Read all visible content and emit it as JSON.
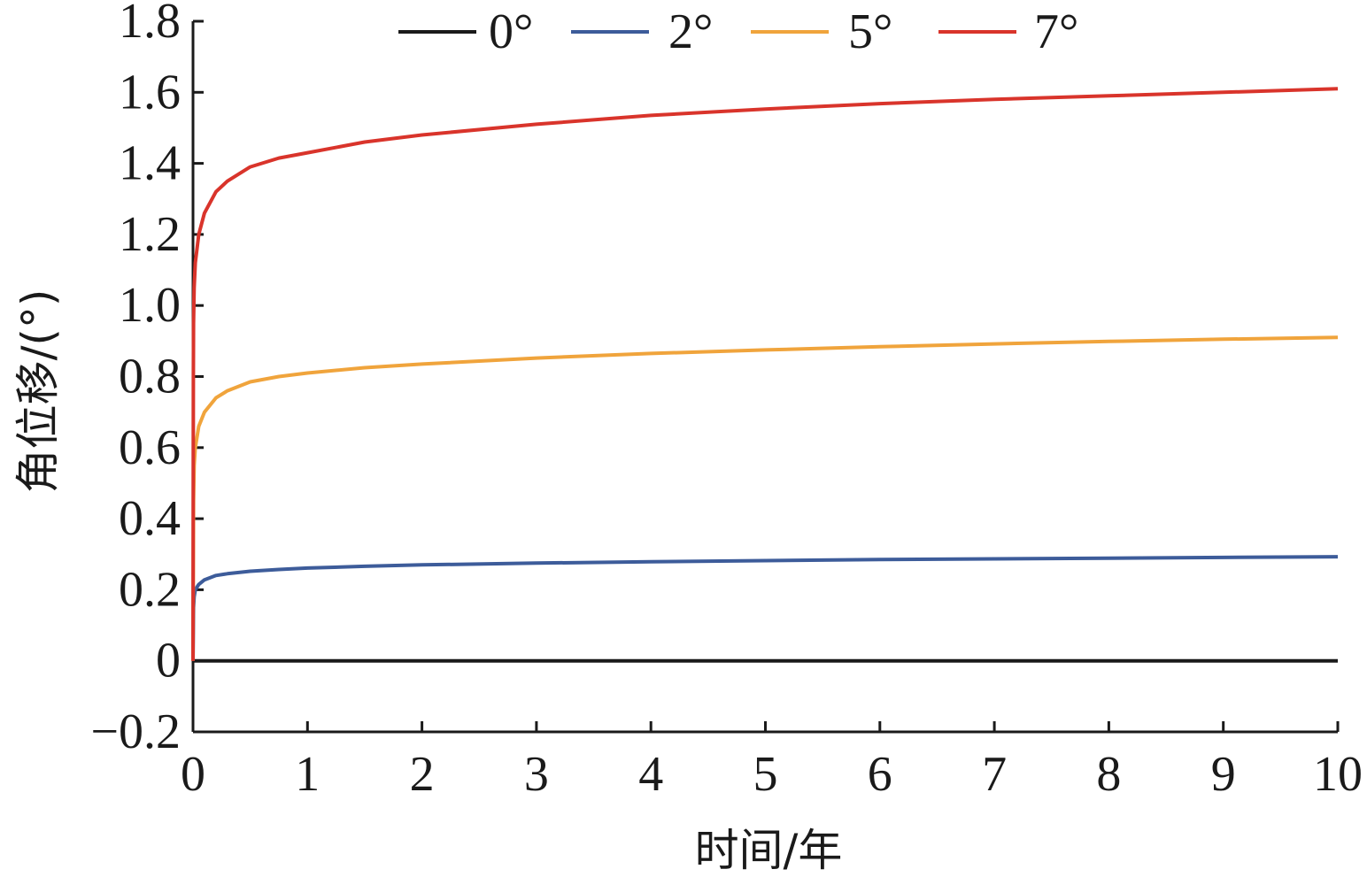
{
  "chart_data": {
    "type": "line",
    "title": "",
    "xlabel": "时间/年",
    "ylabel": "角位移/(°)",
    "xlim": [
      0,
      10
    ],
    "ylim": [
      -0.2,
      1.8
    ],
    "x_ticks": [
      0,
      1,
      2,
      3,
      4,
      5,
      6,
      7,
      8,
      9,
      10
    ],
    "x_tick_labels": [
      "0",
      "1",
      "2",
      "3",
      "4",
      "5",
      "6",
      "7",
      "8",
      "9",
      "10"
    ],
    "y_ticks": [
      -0.2,
      0,
      0.2,
      0.4,
      0.6,
      0.8,
      1.0,
      1.2,
      1.4,
      1.6,
      1.8
    ],
    "y_tick_labels": [
      "−0.2",
      "0",
      "0.2",
      "0.4",
      "0.6",
      "0.8",
      "1.0",
      "1.2",
      "1.4",
      "1.6",
      "1.8"
    ],
    "grid": false,
    "legend_position": "top",
    "series": [
      {
        "name": "0°",
        "color": "#1a1a1a",
        "x": [
          0,
          0.02,
          0.05,
          0.1,
          0.2,
          0.5,
          1,
          2,
          3,
          4,
          5,
          6,
          7,
          8,
          9,
          10
        ],
        "y": [
          0,
          0,
          0,
          0,
          0,
          0,
          0,
          0,
          0,
          0,
          0,
          0,
          0,
          0,
          0,
          0
        ]
      },
      {
        "name": "2°",
        "color": "#3d5c9a",
        "x": [
          0,
          0.005,
          0.01,
          0.02,
          0.05,
          0.1,
          0.2,
          0.3,
          0.5,
          0.75,
          1,
          1.5,
          2,
          3,
          4,
          5,
          6,
          7,
          8,
          9,
          10
        ],
        "y": [
          0,
          0.15,
          0.18,
          0.2,
          0.215,
          0.228,
          0.24,
          0.245,
          0.252,
          0.257,
          0.261,
          0.266,
          0.27,
          0.275,
          0.279,
          0.282,
          0.285,
          0.287,
          0.289,
          0.291,
          0.293
        ]
      },
      {
        "name": "5°",
        "color": "#f0a43c",
        "x": [
          0,
          0.005,
          0.01,
          0.02,
          0.05,
          0.1,
          0.2,
          0.3,
          0.5,
          0.75,
          1,
          1.5,
          2,
          3,
          4,
          5,
          6,
          7,
          8,
          9,
          10
        ],
        "y": [
          0,
          0.45,
          0.55,
          0.6,
          0.66,
          0.7,
          0.74,
          0.76,
          0.785,
          0.8,
          0.81,
          0.825,
          0.835,
          0.852,
          0.865,
          0.875,
          0.884,
          0.892,
          0.899,
          0.905,
          0.91
        ]
      },
      {
        "name": "7°",
        "color": "#d9342b",
        "x": [
          0,
          0.003,
          0.005,
          0.01,
          0.02,
          0.05,
          0.1,
          0.2,
          0.3,
          0.5,
          0.75,
          1,
          1.5,
          2,
          3,
          4,
          5,
          6,
          7,
          8,
          9,
          10
        ],
        "y": [
          0,
          0.8,
          0.95,
          1.05,
          1.12,
          1.2,
          1.26,
          1.32,
          1.35,
          1.39,
          1.415,
          1.43,
          1.46,
          1.48,
          1.51,
          1.535,
          1.553,
          1.568,
          1.58,
          1.59,
          1.6,
          1.61
        ]
      }
    ]
  }
}
